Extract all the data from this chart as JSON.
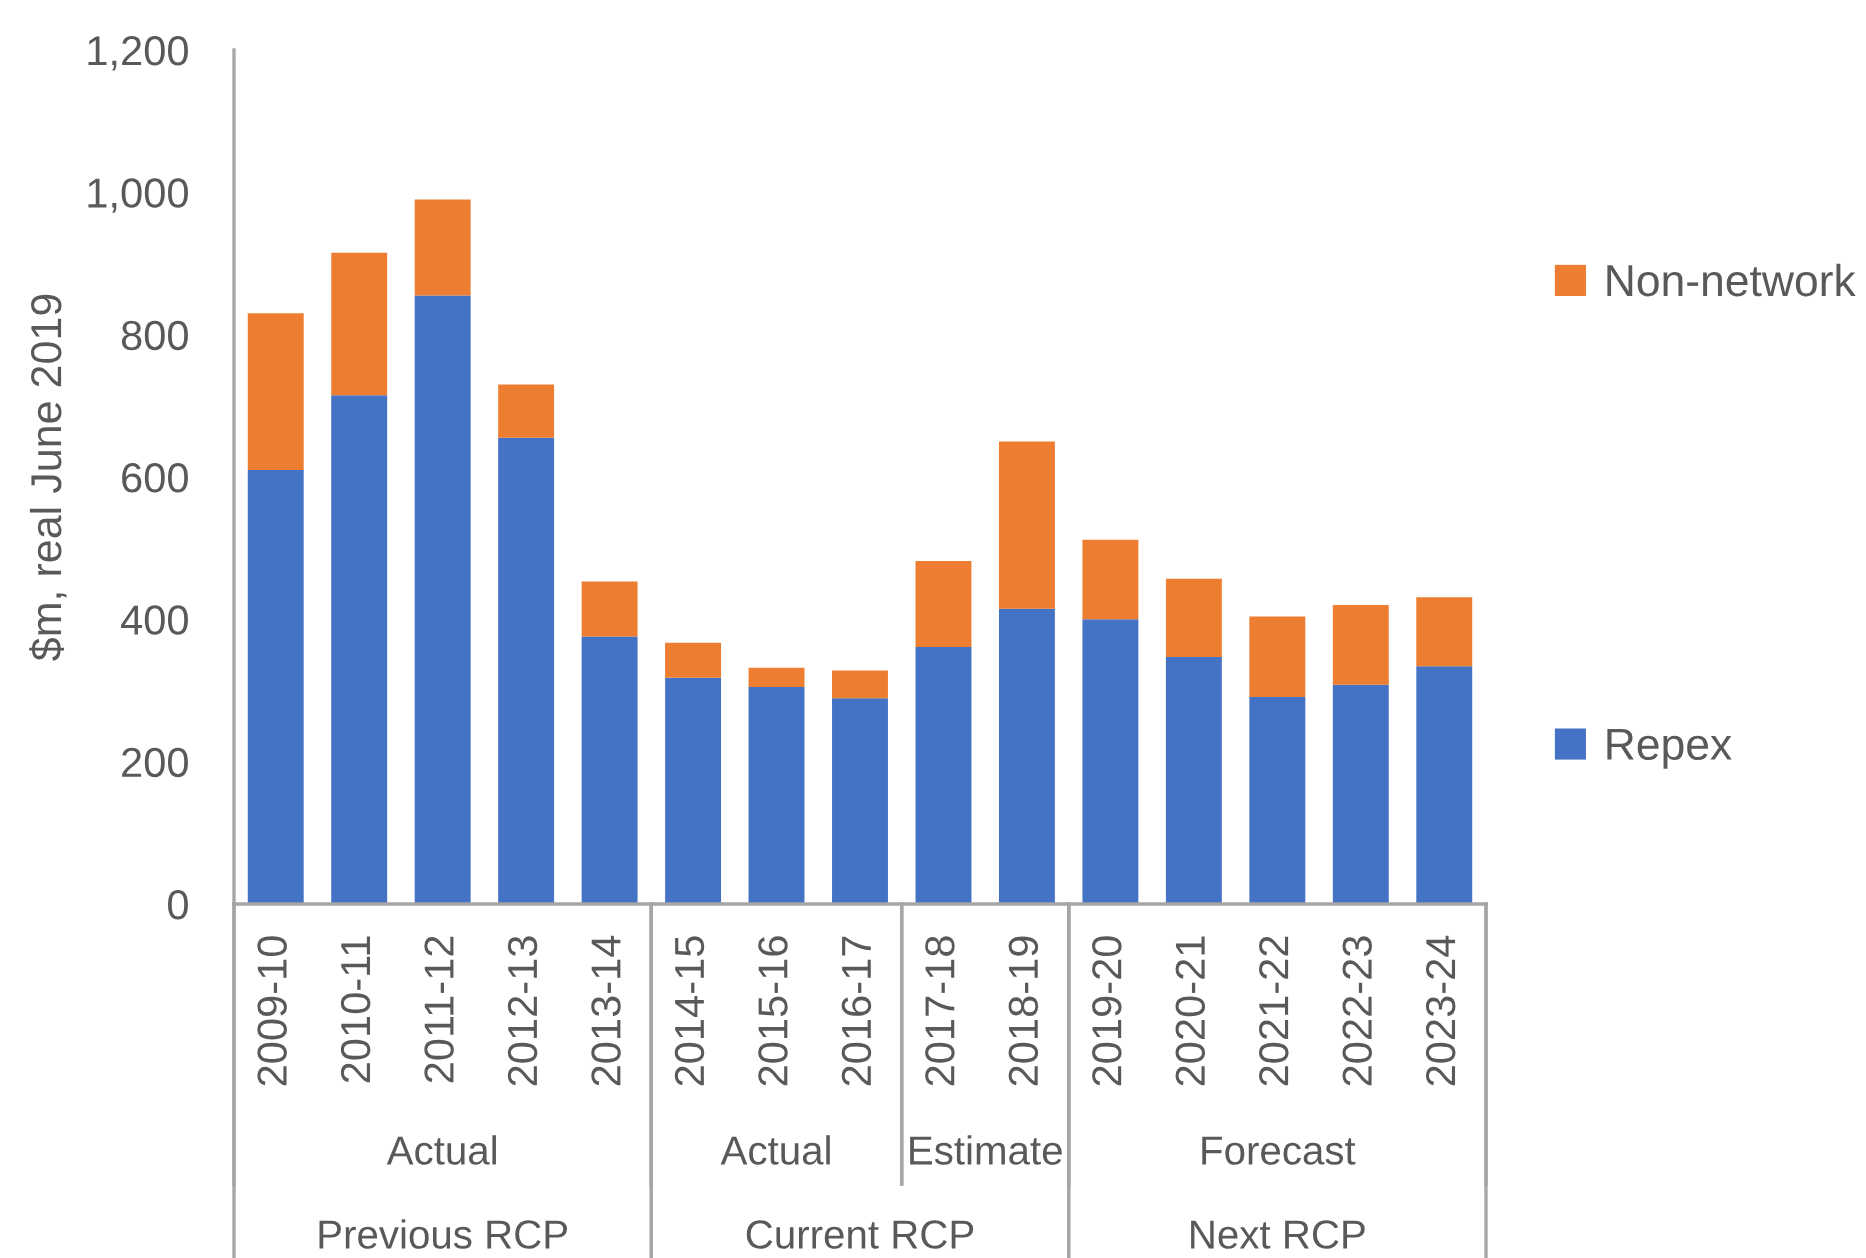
{
  "chart_data": {
    "type": "bar",
    "stacked": true,
    "ylabel": "$m, real June 2019",
    "categories": [
      "2009-10",
      "2010-11",
      "2011-12",
      "2012-13",
      "2013-14",
      "2014-15",
      "2015-16",
      "2016-17",
      "2017-18",
      "2018-19",
      "2019-20",
      "2020-21",
      "2021-22",
      "2022-23",
      "2023-24"
    ],
    "series": [
      {
        "name": "Repex",
        "color": "#4472c4",
        "values": [
          610,
          715,
          855,
          655,
          376,
          318,
          305,
          289,
          361,
          415,
          400,
          347,
          291,
          308,
          334
        ]
      },
      {
        "name": "Non-network",
        "color": "#ed7d31",
        "values": [
          220,
          200,
          135,
          75,
          77,
          49,
          27,
          39,
          121,
          235,
          112,
          110,
          113,
          112,
          97
        ]
      }
    ],
    "ylim": [
      0,
      1200
    ],
    "yticks": [
      0,
      200,
      400,
      600,
      800,
      {
        "value": 1000,
        "label": "1,000"
      },
      {
        "value": 1200,
        "label": "1,200"
      }
    ],
    "legend": "right",
    "annotations": [
      "Actual",
      "Actual",
      "Estimate",
      "Forecast",
      "Previous RCP",
      "Current RCP",
      "Next RCP"
    ]
  }
}
